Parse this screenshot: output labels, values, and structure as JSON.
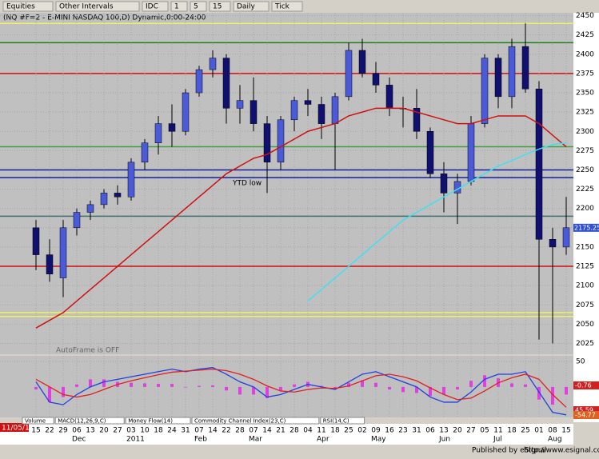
{
  "toolbar": {
    "items": [
      "Equities",
      "Other Intervals",
      "IDC",
      "1",
      "5",
      "15",
      "Daily",
      "Tick"
    ]
  },
  "footer": {
    "text": "Published by eSignal",
    "url": "http://www.esignal.com"
  },
  "tabs": [
    "Volume",
    "MACD(12,26,9,C)",
    "Money Flow(14)",
    "Commodity Channel Index(23,C)",
    "RSI(14,C)"
  ],
  "start_date": "11/05/10",
  "autoframe": "AutoFrame is OFF",
  "chart_data": {
    "type": "candlestick",
    "title": "(NQ #F=2 - E-MINI NASDAQ 100,D) Dynamic,0:00-24:00",
    "categories": [
      "15",
      "22",
      "29",
      "06",
      "13",
      "20",
      "27",
      "03",
      "10",
      "18",
      "24",
      "31",
      "07",
      "14",
      "22",
      "28",
      "07",
      "14",
      "21",
      "28",
      "04",
      "11",
      "18",
      "25",
      "02",
      "09",
      "16",
      "23",
      "31",
      "06",
      "13",
      "20",
      "27",
      "05",
      "11",
      "18",
      "25",
      "01",
      "08",
      "15"
    ],
    "months": [
      "Dec",
      "2011",
      "Feb",
      "Mar",
      "Apr",
      "May",
      "Jun",
      "Jul",
      "Aug"
    ],
    "open": [
      2175,
      2140,
      2110,
      2175,
      2195,
      2205,
      2220,
      2215,
      2260,
      2285,
      2310,
      2300,
      2350,
      2380,
      2395,
      2330,
      2340,
      2310,
      2260,
      2315,
      2340,
      2335,
      2310,
      2345,
      2405,
      2375,
      2360,
      2330,
      2330,
      2300,
      2245,
      2220,
      2235,
      2310,
      2395,
      2345,
      2410,
      2355,
      2160,
      2150
    ],
    "high": [
      2185,
      2160,
      2185,
      2200,
      2210,
      2225,
      2230,
      2265,
      2290,
      2320,
      2335,
      2355,
      2385,
      2405,
      2400,
      2360,
      2370,
      2320,
      2320,
      2345,
      2355,
      2345,
      2350,
      2415,
      2420,
      2390,
      2370,
      2345,
      2355,
      2305,
      2260,
      2245,
      2320,
      2400,
      2400,
      2420,
      2440,
      2365,
      2175,
      2215
    ],
    "low": [
      2120,
      2105,
      2085,
      2165,
      2185,
      2200,
      2205,
      2210,
      2250,
      2270,
      2280,
      2295,
      2345,
      2370,
      2310,
      2310,
      2300,
      2220,
      2250,
      2300,
      2320,
      2290,
      2250,
      2340,
      2370,
      2350,
      2320,
      2305,
      2290,
      2240,
      2195,
      2180,
      2230,
      2305,
      2330,
      2330,
      2350,
      2030,
      2025,
      2140
    ],
    "close": [
      2140,
      2115,
      2175,
      2195,
      2205,
      2220,
      2215,
      2260,
      2285,
      2310,
      2300,
      2350,
      2380,
      2395,
      2330,
      2340,
      2310,
      2260,
      2315,
      2340,
      2335,
      2310,
      2345,
      2405,
      2375,
      2360,
      2330,
      2330,
      2300,
      2245,
      2220,
      2235,
      2310,
      2395,
      2345,
      2410,
      2355,
      2160,
      2150,
      2175
    ],
    "series": [
      {
        "color": "#d01010",
        "values": [
          2045,
          2055,
          2065,
          2080,
          2095,
          2110,
          2125,
          2140,
          2155,
          2170,
          2185,
          2200,
          2215,
          2230,
          2245,
          2255,
          2265,
          2270,
          2280,
          2290,
          2300,
          2305,
          2310,
          2320,
          2325,
          2330,
          2330,
          2330,
          2325,
          2320,
          2315,
          2310,
          2310,
          2315,
          2320,
          2320,
          2320,
          2310,
          2295,
          2280
        ]
      },
      {
        "color": "#40e0f0",
        "values": [
          null,
          null,
          null,
          null,
          null,
          null,
          null,
          null,
          null,
          null,
          null,
          null,
          null,
          null,
          null,
          null,
          null,
          null,
          null,
          null,
          2080,
          2095,
          2110,
          2125,
          2140,
          2155,
          2170,
          2185,
          2195,
          2205,
          2215,
          2225,
          2235,
          2245,
          2255,
          2262,
          2270,
          2277,
          2283,
          2285
        ]
      }
    ],
    "levels": [
      {
        "value": 2440,
        "color": "#f0f060"
      },
      {
        "value": 2415,
        "color": "#208020"
      },
      {
        "value": 2375,
        "color": "#d01010"
      },
      {
        "value": 2280,
        "color": "#40a040"
      },
      {
        "value": 2250,
        "color": "#1020a0"
      },
      {
        "value": 2240,
        "color": "#1020a0"
      },
      {
        "value": 2190,
        "color": "#407070"
      },
      {
        "value": 2125,
        "color": "#d01010"
      },
      {
        "value": 2065,
        "color": "#f0f060"
      },
      {
        "value": 2060,
        "color": "#f0f060"
      }
    ],
    "annotation": "YTD low",
    "last_label": "2175.25",
    "up_color": "#4a5ad8",
    "down_color": "#101070",
    "ylim": [
      2011,
      2462
    ],
    "yticks": [
      2025,
      2050,
      2075,
      2100,
      2125,
      2150,
      2175,
      2200,
      2225,
      2250,
      2275,
      2300,
      2325,
      2350,
      2375,
      2400,
      2425,
      2450
    ],
    "macd": {
      "ylim": [
        -60,
        58
      ],
      "yticks": [
        50
      ],
      "series": [
        {
          "color": "#2040e0",
          "values": [
            10,
            -30,
            -35,
            -15,
            0,
            10,
            15,
            20,
            25,
            30,
            35,
            30,
            35,
            38,
            25,
            10,
            0,
            -20,
            -15,
            -5,
            5,
            0,
            -5,
            10,
            25,
            30,
            20,
            10,
            0,
            -20,
            -30,
            -30,
            -10,
            15,
            25,
            25,
            30,
            -10,
            -50,
            -55
          ]
        },
        {
          "color": "#e02020",
          "values": [
            15,
            0,
            -15,
            -20,
            -15,
            -5,
            5,
            12,
            18,
            24,
            29,
            31,
            33,
            35,
            32,
            25,
            15,
            2,
            -8,
            -10,
            -5,
            -2,
            -3,
            2,
            12,
            22,
            25,
            20,
            12,
            -2,
            -15,
            -25,
            -22,
            -8,
            8,
            18,
            25,
            15,
            -15,
            -40
          ]
        }
      ],
      "histogram": {
        "color": "#e040e0",
        "values": [
          -5,
          -30,
          -20,
          5,
          15,
          15,
          10,
          8,
          7,
          6,
          6,
          -1,
          2,
          3,
          -7,
          -15,
          -15,
          -22,
          -7,
          5,
          10,
          2,
          -2,
          8,
          13,
          8,
          -5,
          -10,
          -12,
          -18,
          -15,
          -5,
          12,
          23,
          17,
          7,
          5,
          -25,
          -35,
          -15
        ]
      },
      "readouts": [
        "-0.76",
        "45.59",
        "-54.77"
      ]
    }
  }
}
